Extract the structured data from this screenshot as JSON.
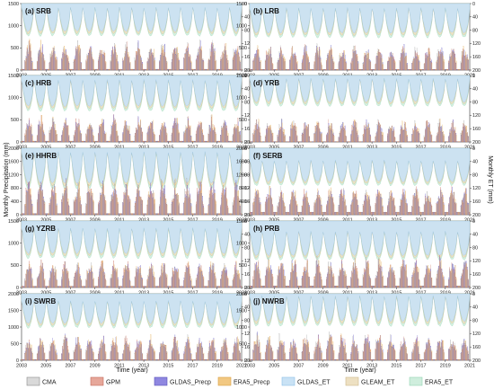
{
  "chart_data": {
    "type": "bar",
    "title": "",
    "ylabel_left": "Monthly Precipitation (mm)",
    "ylabel_right": "Monthly ET (mm)",
    "xlabel": "Time (year)",
    "x_range": [
      2003,
      2021
    ],
    "x_ticks": [
      "2003",
      "2005",
      "2007",
      "2009",
      "2011",
      "2013",
      "2015",
      "2017",
      "2019",
      "2021"
    ],
    "legend_placement": "bottom",
    "series": [
      {
        "name": "CMA",
        "kind": "bar",
        "color": "#d9d9d9",
        "edge": "#8c8c8c"
      },
      {
        "name": "GPM",
        "kind": "bar",
        "color": "#e6a79a",
        "edge": "#c46a5b"
      },
      {
        "name": "GLDAS_Precp",
        "kind": "bar",
        "color": "#8f87e0",
        "edge": "#5a52b8"
      },
      {
        "name": "ERA5_Precp",
        "kind": "bar",
        "color": "#f2c882",
        "edge": "#d9a044"
      },
      {
        "name": "GLDAS_ET",
        "kind": "area",
        "color": "#c9e2f5",
        "edge": "#8ec0e6"
      },
      {
        "name": "GLEAM_ET",
        "kind": "area",
        "color": "#ede0c2",
        "edge": "#cdb98a"
      },
      {
        "name": "ERA5_ET",
        "kind": "area",
        "color": "#cfeedd",
        "edge": "#93d4b1"
      }
    ],
    "panels": [
      {
        "id": "a",
        "label": "(a) SRB",
        "ylim": [
          0,
          1500
        ],
        "yticks": [
          0,
          500,
          1000,
          1500
        ],
        "et_ylim": [
          200,
          0
        ],
        "et_ticks": [
          0,
          40,
          80,
          120,
          160,
          200
        ],
        "precip_peak": 480,
        "precip_base": 20,
        "et_peak": 95,
        "et_base": 10
      },
      {
        "id": "b",
        "label": "(b) LRB",
        "ylim": [
          0,
          1500
        ],
        "yticks": [
          0,
          500,
          1000,
          1500
        ],
        "et_ylim": [
          200,
          0
        ],
        "et_ticks": [
          0,
          40,
          80,
          120,
          160,
          200
        ],
        "precip_peak": 420,
        "precip_base": 15,
        "et_peak": 100,
        "et_base": 12
      },
      {
        "id": "c",
        "label": "(c) HRB",
        "ylim": [
          0,
          1500
        ],
        "yticks": [
          0,
          500,
          1000,
          1500
        ],
        "et_ylim": [
          200,
          0
        ],
        "et_ticks": [
          0,
          40,
          80,
          120,
          160,
          200
        ],
        "precip_peak": 420,
        "precip_base": 20,
        "et_peak": 105,
        "et_base": 12
      },
      {
        "id": "d",
        "label": "(d) YRB",
        "ylim": [
          0,
          1500
        ],
        "yticks": [
          0,
          500,
          1000,
          1500
        ],
        "et_ylim": [
          200,
          0
        ],
        "et_ticks": [
          0,
          40,
          80,
          120,
          160,
          200
        ],
        "precip_peak": 380,
        "precip_base": 10,
        "et_peak": 90,
        "et_base": 8
      },
      {
        "id": "e",
        "label": "(e) HHRB",
        "ylim": [
          0,
          2000
        ],
        "yticks": [
          0,
          400,
          800,
          1200,
          1600,
          2000
        ],
        "et_ylim": [
          200,
          0
        ],
        "et_ticks": [
          0,
          40,
          80,
          120,
          160,
          200
        ],
        "precip_peak": 780,
        "precip_base": 30,
        "et_peak": 120,
        "et_base": 10
      },
      {
        "id": "f",
        "label": "(f) SERB",
        "ylim": [
          0,
          2000
        ],
        "yticks": [
          0,
          400,
          800,
          1200,
          1600,
          2000
        ],
        "et_ylim": [
          200,
          0
        ],
        "et_ticks": [
          0,
          40,
          80,
          120,
          160,
          200
        ],
        "precip_peak": 620,
        "precip_base": 80,
        "et_peak": 110,
        "et_base": 35
      },
      {
        "id": "g",
        "label": "(g) YZRB",
        "ylim": [
          0,
          1500
        ],
        "yticks": [
          0,
          500,
          1000,
          1500
        ],
        "et_ylim": [
          200,
          0
        ],
        "et_ticks": [
          0,
          40,
          80,
          120,
          160,
          200
        ],
        "precip_peak": 460,
        "precip_base": 30,
        "et_peak": 110,
        "et_base": 20
      },
      {
        "id": "h",
        "label": "(h) PRB",
        "ylim": [
          0,
          1500
        ],
        "yticks": [
          0,
          500,
          1000,
          1500
        ],
        "et_ylim": [
          200,
          0
        ],
        "et_ticks": [
          0,
          40,
          80,
          120,
          160,
          200
        ],
        "precip_peak": 500,
        "precip_base": 35,
        "et_peak": 115,
        "et_base": 30
      },
      {
        "id": "i",
        "label": "(i) SWRB",
        "ylim": [
          0,
          2000
        ],
        "yticks": [
          0,
          500,
          1000,
          1500,
          2000
        ],
        "et_ylim": [
          200,
          0
        ],
        "et_ticks": [
          0,
          40,
          80,
          120,
          160,
          200
        ],
        "precip_peak": 560,
        "precip_base": 25,
        "et_peak": 100,
        "et_base": 20
      },
      {
        "id": "j",
        "label": "(j) NWRB",
        "ylim": [
          0,
          2000
        ],
        "yticks": [
          0,
          500,
          1000,
          1500,
          2000
        ],
        "et_ylim": [
          200,
          0
        ],
        "et_ticks": [
          0,
          40,
          80,
          120,
          160,
          200
        ],
        "precip_peak": 600,
        "precip_base": 20,
        "et_peak": 95,
        "et_base": 5
      }
    ]
  }
}
